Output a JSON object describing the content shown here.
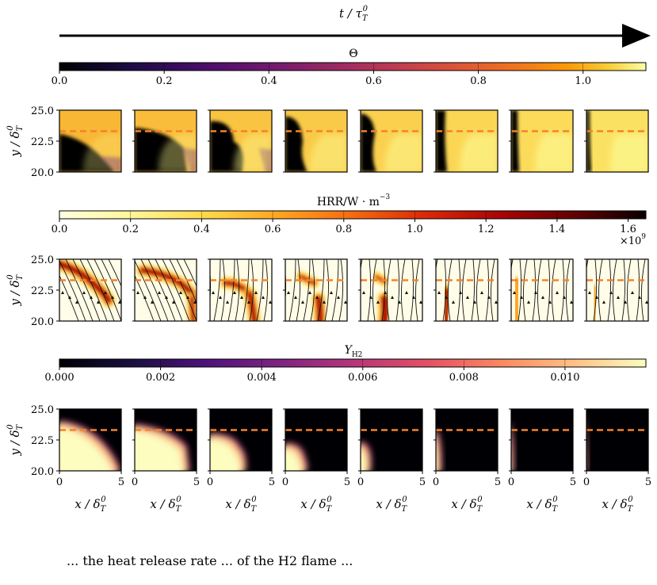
{
  "figure": {
    "time_axis_label": "t / τ",
    "time_axis_sub": "T",
    "time_axis_sup": "0",
    "caption_fragment": "... the heat release rate ... of the H2 flame ..."
  },
  "chart_data": [
    {
      "type": "heatmap",
      "name": "temperature-row",
      "colorbar": {
        "label": "Θ",
        "colormap": "inferno",
        "range": [
          0.0,
          1.12
        ],
        "ticks": [
          0.0,
          0.2,
          0.4,
          0.6,
          0.8,
          1.0
        ],
        "tick_labels": [
          "0.0",
          "0.2",
          "0.4",
          "0.6",
          "0.8",
          "1.0"
        ]
      },
      "ylabel": "y / δ",
      "ylabel_sub": "T",
      "ylabel_sup": "0",
      "xlim": [
        0,
        5
      ],
      "ylim": [
        20.0,
        25.0
      ],
      "yticks": [
        "20.0",
        "22.5",
        "25.0"
      ],
      "dashed_line_y": 23.3,
      "dashed_line_color": "#f5822a",
      "panels": 8
    },
    {
      "type": "heatmap",
      "name": "hrr-row",
      "colorbar": {
        "label": "HRR/W · m",
        "label_sup": "−3",
        "colormap": "hot_r",
        "range": [
          0.0,
          1.65
        ],
        "ticks": [
          0.0,
          0.2,
          0.4,
          0.6,
          0.8,
          1.0,
          1.2,
          1.4,
          1.6
        ],
        "tick_labels": [
          "0.0",
          "0.2",
          "0.4",
          "0.6",
          "0.8",
          "1.0",
          "1.2",
          "1.4",
          "1.6"
        ],
        "multiplier": "×10",
        "multiplier_sup": "9"
      },
      "ylabel": "y / δ",
      "ylabel_sub": "T",
      "ylabel_sup": "0",
      "xlim": [
        0,
        5
      ],
      "ylim": [
        20.0,
        25.0
      ],
      "yticks": [
        "20.0",
        "22.5",
        "25.0"
      ],
      "dashed_line_y": 23.3,
      "dashed_line_color": "#f5822a",
      "streamlines": true,
      "panels": 8
    },
    {
      "type": "heatmap",
      "name": "h2-row",
      "colorbar": {
        "label": "Y",
        "label_sub": "H2",
        "colormap": "magma",
        "range": [
          0.0,
          0.0116
        ],
        "ticks": [
          0.0,
          0.002,
          0.004,
          0.006,
          0.008,
          0.01
        ],
        "tick_labels": [
          "0.000",
          "0.002",
          "0.004",
          "0.006",
          "0.008",
          "0.010"
        ]
      },
      "ylabel": "y / δ",
      "ylabel_sub": "T",
      "ylabel_sup": "0",
      "xlabel": "x / δ",
      "xlabel_sub": "T",
      "xlabel_sup": "0",
      "xlim": [
        0,
        5
      ],
      "ylim": [
        20.0,
        25.0
      ],
      "xticks": [
        "0",
        "5"
      ],
      "yticks": [
        "20.0",
        "22.5",
        "25.0"
      ],
      "dashed_line_y": 23.3,
      "dashed_line_color": "#f5822a",
      "panels": 8
    }
  ]
}
